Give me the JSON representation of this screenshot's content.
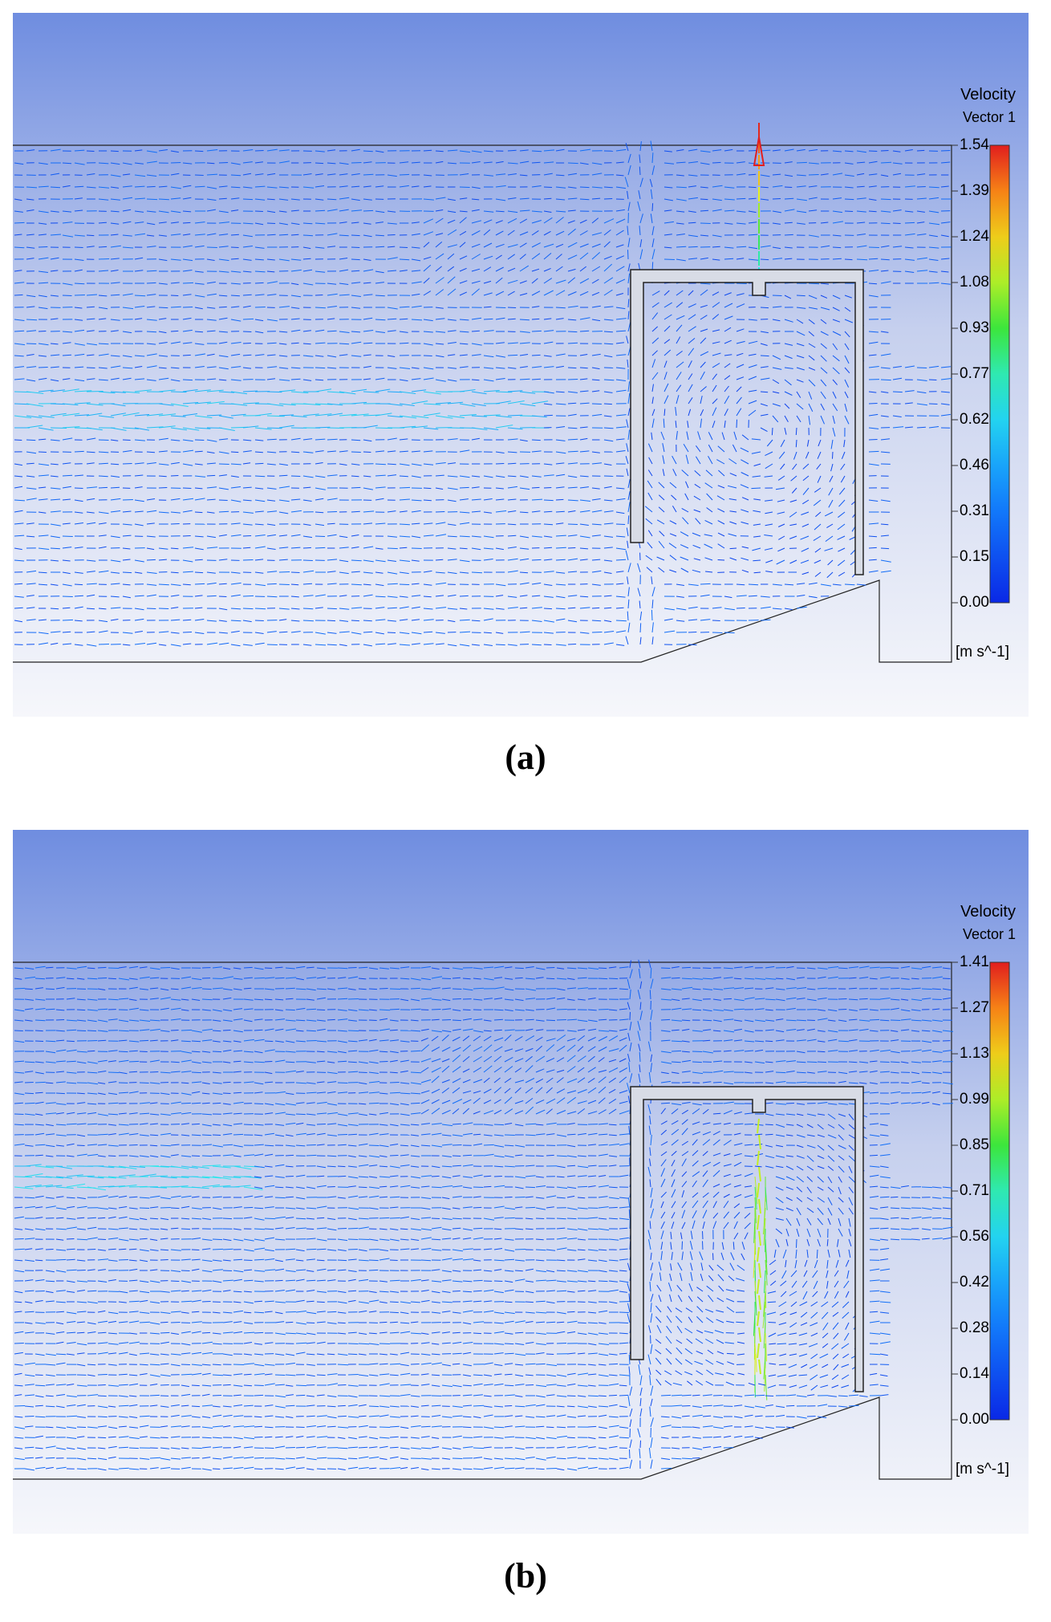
{
  "panels": [
    {
      "id": "a",
      "caption": "(a)",
      "legend": {
        "title": "Velocity",
        "subtitle": "Vector 1",
        "unit": "[m s^-1]",
        "ticks": [
          "1.54",
          "1.39",
          "1.24",
          "1.08",
          "0.93",
          "0.77",
          "0.62",
          "0.46",
          "0.31",
          "0.15",
          "0.00"
        ],
        "max": 1.54,
        "min": 0.0
      },
      "colors": {
        "background_top": "#6f8de0",
        "background_bottom": "#f6f7fb",
        "vector_low": "#1e3cf0",
        "vector_high": "#e8312a"
      }
    },
    {
      "id": "b",
      "caption": "(b)",
      "legend": {
        "title": "Velocity",
        "subtitle": "Vector 1",
        "unit": "[m s^-1]",
        "ticks": [
          "1.41",
          "1.27",
          "1.13",
          "0.99",
          "0.85",
          "0.71",
          "0.56",
          "0.42",
          "0.28",
          "0.14",
          "0.00"
        ],
        "max": 1.41,
        "min": 0.0
      },
      "colors": {
        "background_top": "#6f8de0",
        "background_bottom": "#f6f7fb",
        "vector_low": "#1e3cf0",
        "vector_high": "#e8312a"
      }
    }
  ]
}
